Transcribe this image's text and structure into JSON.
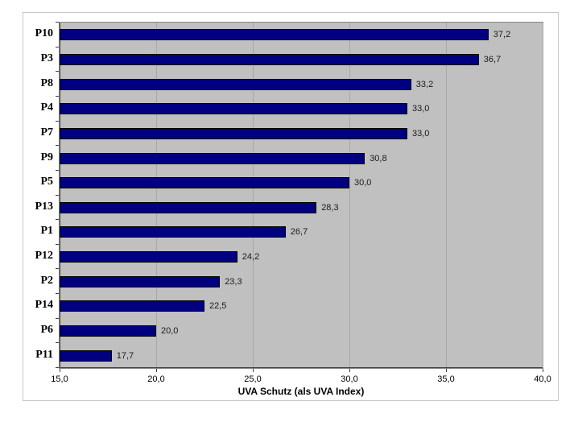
{
  "chart_data": {
    "type": "bar",
    "orientation": "horizontal",
    "title": "",
    "xlabel": "UVA Schutz (als UVA Index)",
    "ylabel": "",
    "categories": [
      "P10",
      "P3",
      "P8",
      "P4",
      "P7",
      "P9",
      "P5",
      "P13",
      "P1",
      "P12",
      "P2",
      "P14",
      "P6",
      "P11"
    ],
    "values": [
      37.2,
      36.7,
      33.2,
      33.0,
      33.0,
      30.8,
      30.0,
      28.3,
      26.7,
      24.2,
      23.3,
      22.5,
      20.0,
      17.7
    ],
    "value_labels": [
      "37,2",
      "36,7",
      "33,2",
      "33,0",
      "33,0",
      "30,8",
      "30,0",
      "28,3",
      "26,7",
      "24,2",
      "23,3",
      "22,5",
      "20,0",
      "17,7"
    ],
    "xlim": [
      15,
      40
    ],
    "xticks": [
      15,
      20,
      25,
      30,
      35,
      40
    ],
    "xtick_labels": [
      "15,0",
      "20,0",
      "25,0",
      "30,0",
      "35,0",
      "40,0"
    ],
    "grid": "vertical-major",
    "legend": "none",
    "colors": {
      "bar_fill": "#000080",
      "bar_border": "#000000",
      "plot_background": "#c0c0c0",
      "gridline": "#a8a8a8",
      "axis": "#3f3f3f",
      "frame_border": "#c6c6c6",
      "page_background": "#ffffff",
      "value_label_text": "#1a1a1a"
    }
  }
}
